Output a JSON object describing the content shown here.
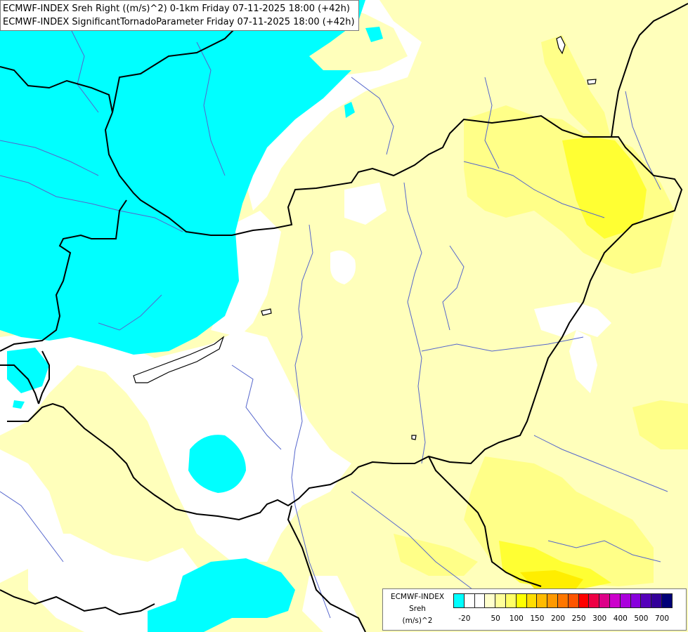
{
  "title": {
    "line1": "ECMWF-INDEX Sreh Right ((m/s)^2) 0-1km Friday 07-11-2025 18:00 (+42h)",
    "line2": "ECMWF-INDEX SignificantTornadoParameter Friday 07-11-2025 18:00 (+42h)"
  },
  "legend": {
    "source": "ECMWF-INDEX",
    "variable": "Sreh",
    "unit": "(m/s)^2",
    "colors": [
      "#00ffff",
      "#ffffff",
      "#ffffff",
      "#ffffcc",
      "#ffff99",
      "#ffff66",
      "#ffff00",
      "#ffdd00",
      "#ffbb00",
      "#ff9900",
      "#ff7700",
      "#ff5500",
      "#ff0000",
      "#ee0044",
      "#dd0088",
      "#cc00cc",
      "#aa00dd",
      "#8800dd",
      "#5500bb",
      "#330099",
      "#000077"
    ],
    "ticks": [
      "-20",
      "50",
      "100",
      "150",
      "200",
      "250",
      "300",
      "400",
      "500",
      "700"
    ]
  },
  "map": {
    "colors": {
      "cyan": "#00ffff",
      "white": "#ffffff",
      "pale_yellow": "#ffffbb",
      "light_yellow": "#ffff88",
      "yellow": "#ffff33",
      "strong_yellow": "#ffee00",
      "border": "#000000",
      "river": "#5566cc"
    }
  }
}
